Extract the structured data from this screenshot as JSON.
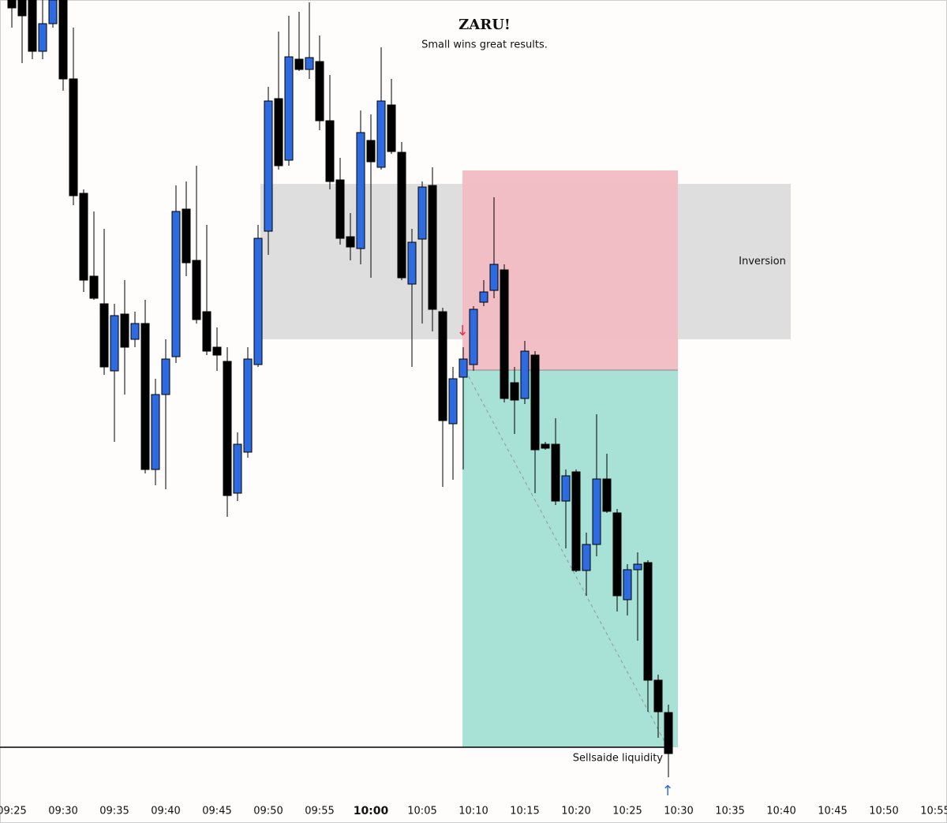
{
  "chart_data": {
    "type": "candlestick",
    "title": "ZARU!",
    "subtitle": "Small wins great results.",
    "up_color": "#2f6be0",
    "down_color": "#000000",
    "ylim": [
      0,
      1010
    ],
    "categories": [
      "09:25",
      null,
      null,
      null,
      null,
      "09:30",
      null,
      null,
      null,
      null,
      "09:35",
      null,
      null,
      null,
      null,
      "09:40",
      null,
      null,
      null,
      null,
      "09:45",
      null,
      null,
      null,
      null,
      "09:50",
      null,
      null,
      null,
      null,
      "09:55",
      null,
      null,
      null,
      null,
      "10:00",
      null,
      null,
      null,
      null,
      "10:05",
      null,
      null,
      null,
      null,
      "10:10",
      null,
      null,
      null,
      null,
      "10:15",
      null,
      null,
      null,
      null,
      "10:20",
      null,
      null,
      null,
      null,
      "10:25",
      null,
      null,
      null,
      null,
      "10:30",
      null,
      null,
      null,
      null,
      "10:35",
      null,
      null,
      null,
      null,
      "10:40",
      null,
      null,
      null,
      null,
      "10:45",
      null,
      null,
      null,
      null,
      "10:50",
      null,
      null,
      null,
      null,
      "10:55"
    ],
    "open": [
      1010,
      1010,
      1010,
      945,
      980,
      1010,
      910,
      765,
      660,
      625,
      540,
      612,
      580,
      600,
      415,
      510,
      558,
      745,
      680,
      615,
      570,
      552,
      385,
      437,
      548,
      717,
      885,
      807,
      935,
      922,
      932,
      857,
      782,
      710,
      695,
      832,
      798,
      877,
      817,
      650,
      707,
      775,
      615,
      473,
      532,
      548,
      627,
      642,
      668,
      525,
      505,
      560,
      447,
      447,
      375,
      412,
      287,
      320,
      403,
      360,
      250,
      288,
      297,
      148,
      107,
      null,
      null,
      null,
      null,
      null,
      null,
      null,
      null,
      null,
      null,
      null,
      null,
      null,
      null,
      null,
      null,
      null,
      null,
      null,
      null,
      null,
      null,
      null,
      null,
      null,
      null
    ],
    "high": [
      1010,
      1010,
      1010,
      1010,
      1010,
      1010,
      975,
      770,
      742,
      720,
      625,
      655,
      615,
      630,
      530,
      580,
      775,
      780,
      800,
      725,
      595,
      570,
      462,
      570,
      725,
      900,
      970,
      990,
      995,
      1007,
      965,
      915,
      810,
      740,
      870,
      865,
      950,
      910,
      830,
      720,
      780,
      798,
      620,
      545,
      570,
      622,
      655,
      760,
      675,
      545,
      578,
      565,
      450,
      480,
      415,
      415,
      335,
      485,
      435,
      365,
      295,
      310,
      300,
      155,
      117,
      null,
      null,
      null,
      null,
      null,
      null,
      null,
      null,
      null,
      null,
      null,
      null,
      null,
      null,
      null,
      null,
      null,
      null,
      null,
      null,
      null,
      null,
      null,
      null,
      null,
      null
    ],
    "low": [
      975,
      930,
      935,
      935,
      975,
      895,
      750,
      640,
      630,
      535,
      450,
      510,
      570,
      410,
      395,
      390,
      550,
      660,
      600,
      560,
      540,
      355,
      375,
      430,
      545,
      687,
      795,
      800,
      920,
      910,
      845,
      770,
      700,
      680,
      675,
      658,
      795,
      815,
      655,
      545,
      600,
      590,
      393,
      402,
      415,
      540,
      622,
      632,
      500,
      460,
      498,
      385,
      440,
      370,
      315,
      285,
      255,
      305,
      360,
      235,
      230,
      198,
      108,
      75,
      25,
      null,
      null,
      null,
      null,
      null,
      null,
      null,
      null,
      null,
      null,
      null,
      null,
      null,
      null,
      null,
      null,
      null,
      null,
      null,
      null,
      null,
      null,
      null,
      null,
      null,
      null
    ],
    "close": [
      1000,
      990,
      945,
      980,
      1010,
      910,
      762,
      655,
      632,
      545,
      610,
      570,
      600,
      415,
      510,
      555,
      742,
      677,
      605,
      565,
      560,
      382,
      447,
      555,
      708,
      882,
      800,
      938,
      922,
      937,
      857,
      780,
      708,
      697,
      842,
      805,
      882,
      818,
      658,
      703,
      773,
      618,
      477,
      530,
      555,
      618,
      640,
      675,
      505,
      503,
      565,
      440,
      442,
      375,
      407,
      287,
      320,
      403,
      362,
      255,
      288,
      295,
      148,
      108,
      55,
      null,
      null,
      null,
      null,
      null,
      null,
      null,
      null,
      null,
      null,
      null,
      null,
      null,
      null,
      null,
      null,
      null,
      null,
      null,
      null,
      null,
      null,
      null,
      null,
      null,
      null
    ],
    "zones": [
      {
        "label": "Inversion",
        "top": 777,
        "bottom": 580,
        "color": "#dcdcdc"
      },
      {
        "top": 794,
        "bottom": 541,
        "color": "#f2bcc3"
      },
      {
        "top": 541,
        "bottom": 63,
        "color": "#a3dfd4"
      }
    ],
    "liquidity": {
      "label": "Sellsaide liquidity",
      "value": 63
    }
  }
}
